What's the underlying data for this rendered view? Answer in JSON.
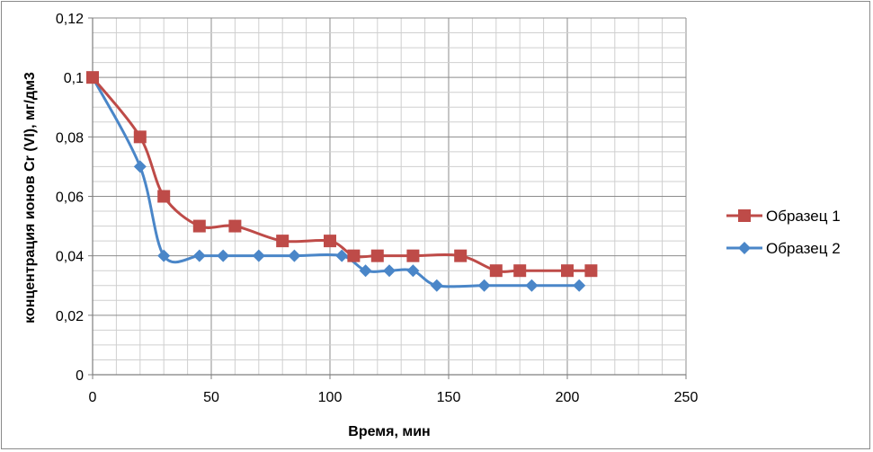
{
  "chart_data": {
    "type": "line",
    "title": "",
    "xlabel": "Время, мин",
    "ylabel": "концентрация ионов Cr (VI), мг/дм3",
    "xlim": [
      0,
      250
    ],
    "ylim": [
      0,
      0.12
    ],
    "x_ticks": [
      "0",
      "50",
      "100",
      "150",
      "200",
      "250"
    ],
    "y_ticks": [
      "0",
      "0,02",
      "0,04",
      "0,06",
      "0,08",
      "0,1",
      "0,12"
    ],
    "grid": true,
    "legend_position": "right",
    "series": [
      {
        "name": "Образец 1",
        "color": "#be4b48",
        "marker": "square",
        "x": [
          0,
          20,
          30,
          45,
          60,
          80,
          100,
          110,
          120,
          135,
          155,
          170,
          180,
          200,
          210
        ],
        "y": [
          0.1,
          0.08,
          0.06,
          0.05,
          0.05,
          0.045,
          0.045,
          0.04,
          0.04,
          0.04,
          0.04,
          0.035,
          0.035,
          0.035,
          0.035
        ]
      },
      {
        "name": "Образец 2",
        "color": "#4a86c8",
        "marker": "diamond",
        "x": [
          0,
          20,
          30,
          45,
          55,
          70,
          85,
          105,
          115,
          125,
          135,
          145,
          165,
          185,
          205
        ],
        "y": [
          0.1,
          0.07,
          0.04,
          0.04,
          0.04,
          0.04,
          0.04,
          0.04,
          0.035,
          0.035,
          0.035,
          0.03,
          0.03,
          0.03,
          0.03
        ]
      }
    ]
  }
}
